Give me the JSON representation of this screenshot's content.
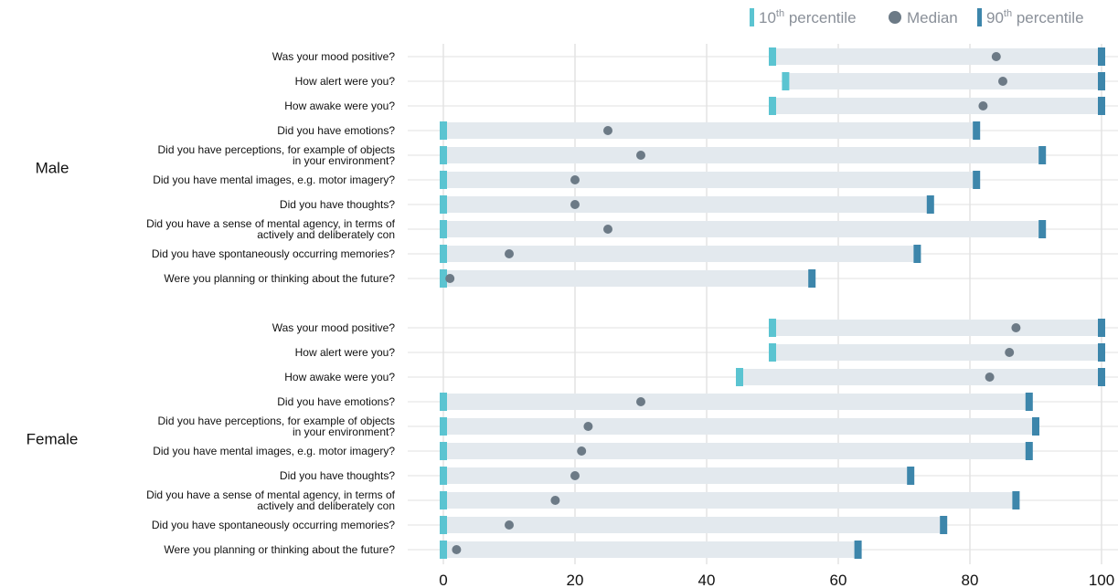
{
  "chart_data": {
    "type": "range-dot",
    "xlim": [
      0,
      100
    ],
    "x_ticks": [
      "0",
      "20",
      "40",
      "60",
      "80",
      "100"
    ],
    "grid": true,
    "legend_position": "top-right",
    "legend": [
      {
        "key": "p10",
        "label_base": "10",
        "label_sup": "th",
        "label_rest": " percentile",
        "color": "#5bc4d1"
      },
      {
        "key": "median",
        "label_base": "Median",
        "label_sup": "",
        "label_rest": "",
        "color": "#6c7a86"
      },
      {
        "key": "p90",
        "label_base": "90",
        "label_sup": "th",
        "label_rest": " percentile",
        "color": "#3d86ab"
      }
    ],
    "groups": [
      {
        "name": "Male",
        "rows": [
          {
            "label": [
              "Was your mood positive?"
            ],
            "p10": 50,
            "median": 84,
            "p90": 100
          },
          {
            "label": [
              "How alert were you?"
            ],
            "p10": 52,
            "median": 85,
            "p90": 100
          },
          {
            "label": [
              "How awake were you?"
            ],
            "p10": 50,
            "median": 82,
            "p90": 100
          },
          {
            "label": [
              "Did you have emotions?"
            ],
            "p10": 0,
            "median": 25,
            "p90": 81
          },
          {
            "label": [
              "Did you have perceptions, for example of objects",
              "in your environment?"
            ],
            "p10": 0,
            "median": 30,
            "p90": 91
          },
          {
            "label": [
              "Did you have mental images, e.g. motor imagery?"
            ],
            "p10": 0,
            "median": 20,
            "p90": 81
          },
          {
            "label": [
              "Did you have thoughts?"
            ],
            "p10": 0,
            "median": 20,
            "p90": 74
          },
          {
            "label": [
              "Did you have a sense of mental agency, in terms of",
              "actively and deliberately con"
            ],
            "p10": 0,
            "median": 25,
            "p90": 91
          },
          {
            "label": [
              "Did you have spontaneously occurring memories?"
            ],
            "p10": 0,
            "median": 10,
            "p90": 72
          },
          {
            "label": [
              "Were you planning or thinking about the future?"
            ],
            "p10": 0,
            "median": 1,
            "p90": 56
          }
        ]
      },
      {
        "name": "Female",
        "rows": [
          {
            "label": [
              "Was your mood positive?"
            ],
            "p10": 50,
            "median": 87,
            "p90": 100
          },
          {
            "label": [
              "How alert were you?"
            ],
            "p10": 50,
            "median": 86,
            "p90": 100
          },
          {
            "label": [
              "How awake were you?"
            ],
            "p10": 45,
            "median": 83,
            "p90": 100
          },
          {
            "label": [
              "Did you have emotions?"
            ],
            "p10": 0,
            "median": 30,
            "p90": 89
          },
          {
            "label": [
              "Did you have perceptions, for example of objects",
              "in your environment?"
            ],
            "p10": 0,
            "median": 22,
            "p90": 90
          },
          {
            "label": [
              "Did you have mental images, e.g. motor imagery?"
            ],
            "p10": 0,
            "median": 21,
            "p90": 89
          },
          {
            "label": [
              "Did you have thoughts?"
            ],
            "p10": 0,
            "median": 20,
            "p90": 71
          },
          {
            "label": [
              "Did you have a sense of mental agency, in terms of",
              "actively and deliberately con"
            ],
            "p10": 0,
            "median": 17,
            "p90": 87
          },
          {
            "label": [
              "Did you have spontaneously occurring memories?"
            ],
            "p10": 0,
            "median": 10,
            "p90": 76
          },
          {
            "label": [
              "Were you planning or thinking about the future?"
            ],
            "p10": 0,
            "median": 2,
            "p90": 63
          }
        ]
      }
    ]
  }
}
